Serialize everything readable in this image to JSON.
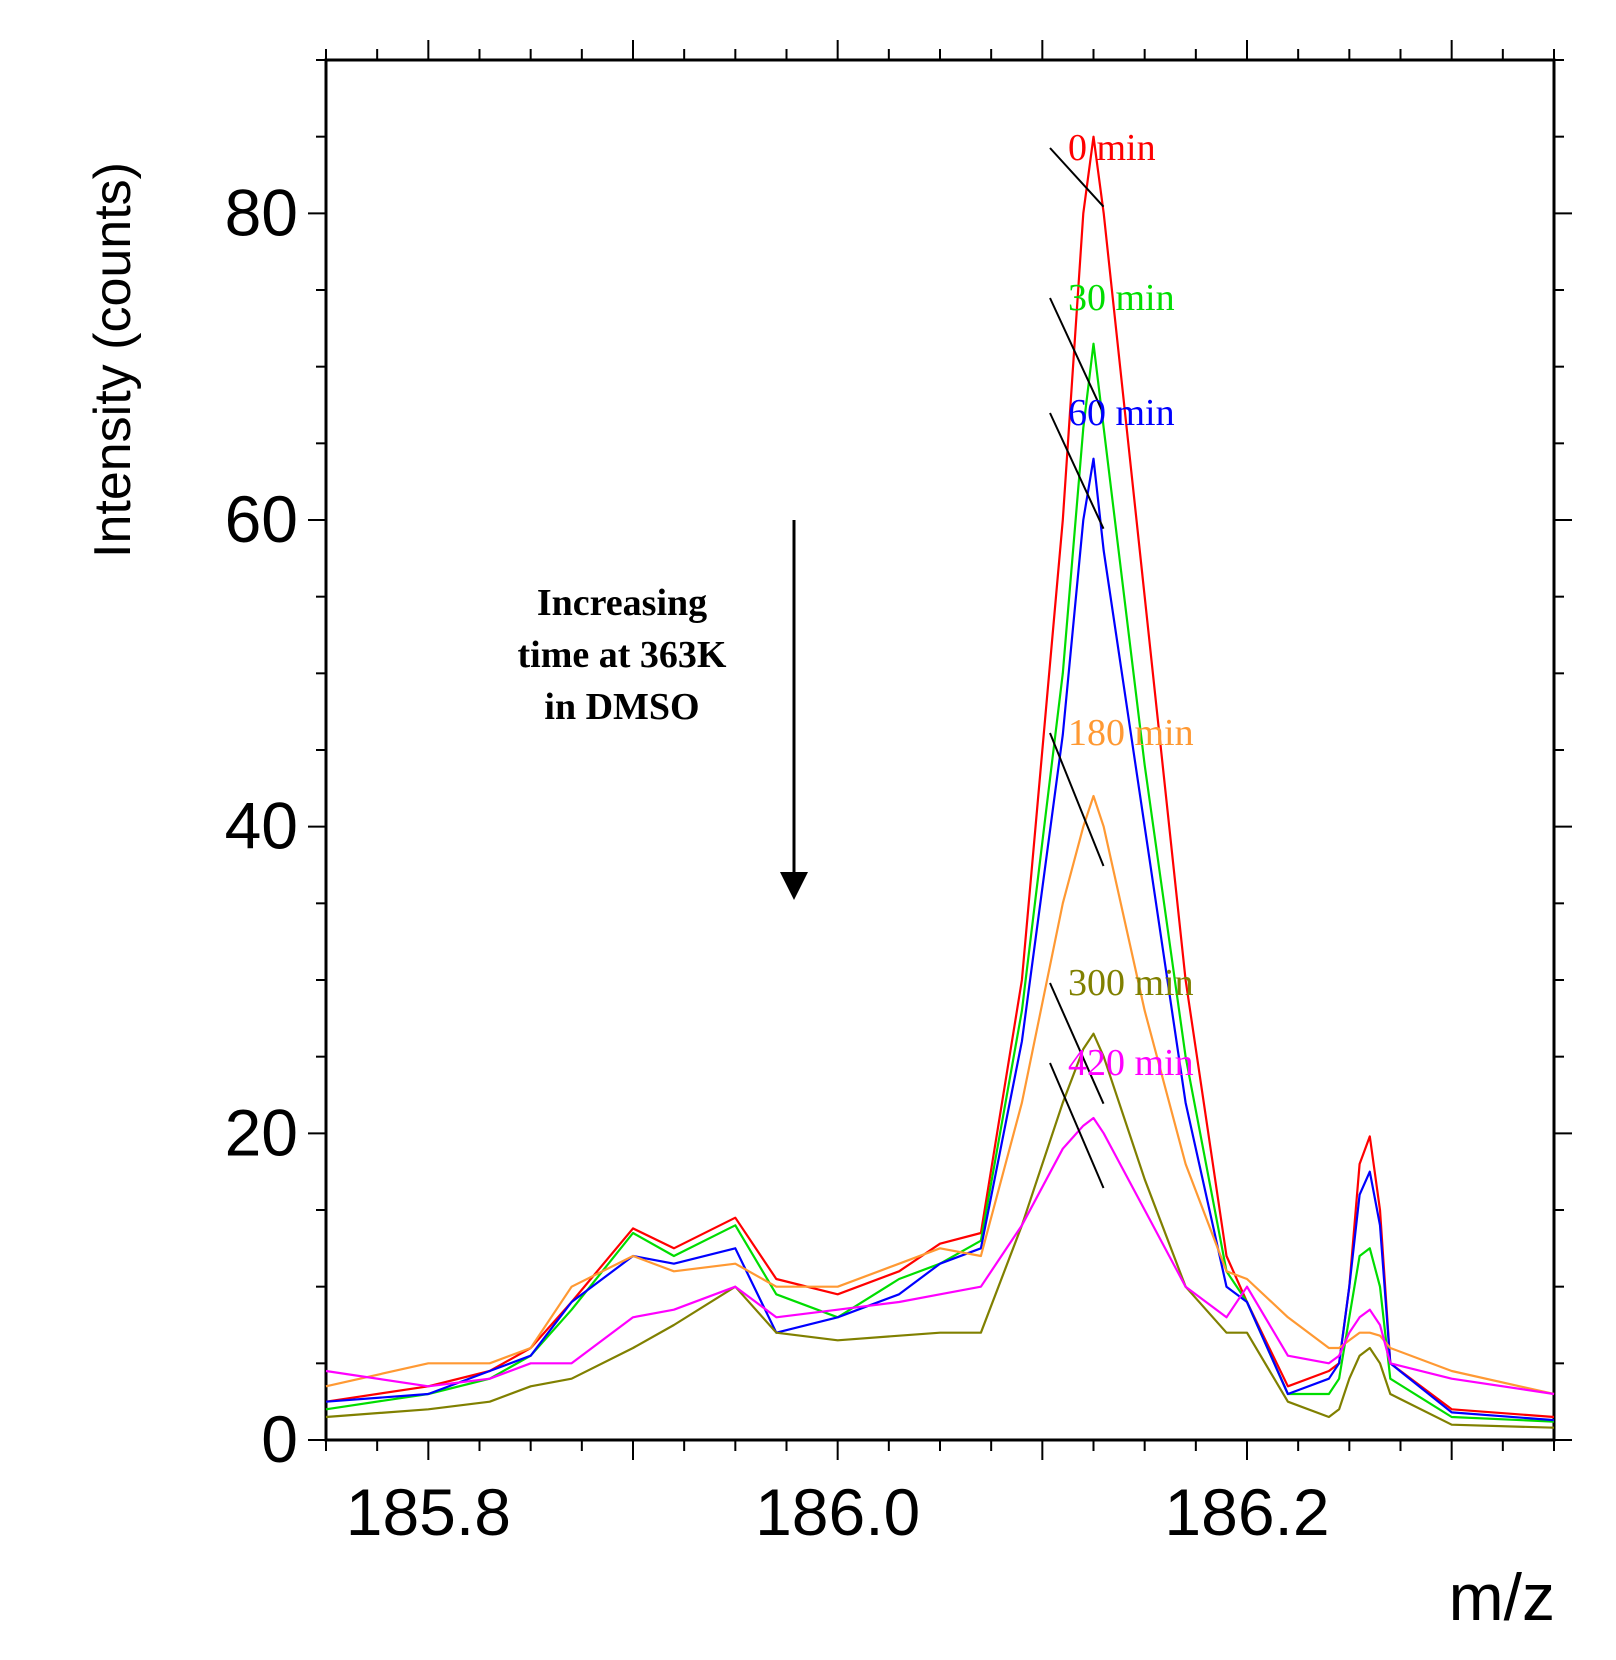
{
  "chart_data": {
    "type": "line",
    "title": "",
    "xlabel": "m/z",
    "ylabel": "Intensity (counts)",
    "xlim": [
      185.75,
      186.35
    ],
    "ylim": [
      0,
      90
    ],
    "x_ticks": [
      185.8,
      186.0,
      186.2
    ],
    "x_tick_labels": [
      "185.8",
      "186.0",
      "186.2"
    ],
    "y_ticks": [
      0,
      20,
      40,
      60,
      80
    ],
    "y_tick_labels": [
      "0",
      "20",
      "40",
      "60",
      "80"
    ],
    "grid": false,
    "legend": "inline labels at top-right of main peak",
    "annotation": {
      "lines": [
        "Increasing",
        "time at 363K",
        "in DMSO"
      ],
      "arrow": "down"
    },
    "series": [
      {
        "name": "0 min",
        "color": "#ff0000",
        "points": [
          [
            185.75,
            2.5
          ],
          [
            185.8,
            3.5
          ],
          [
            185.83,
            4.5
          ],
          [
            185.85,
            6
          ],
          [
            185.87,
            9
          ],
          [
            185.9,
            13.8
          ],
          [
            185.92,
            12.5
          ],
          [
            185.95,
            14.5
          ],
          [
            185.97,
            10.5
          ],
          [
            186.0,
            9.5
          ],
          [
            186.03,
            11
          ],
          [
            186.05,
            12.8
          ],
          [
            186.07,
            13.5
          ],
          [
            186.09,
            30
          ],
          [
            186.11,
            60
          ],
          [
            186.12,
            80
          ],
          [
            186.125,
            85
          ],
          [
            186.13,
            80
          ],
          [
            186.15,
            55
          ],
          [
            186.17,
            30
          ],
          [
            186.19,
            12
          ],
          [
            186.2,
            9
          ],
          [
            186.22,
            3.5
          ],
          [
            186.24,
            4.5
          ],
          [
            186.245,
            5
          ],
          [
            186.25,
            10
          ],
          [
            186.255,
            18
          ],
          [
            186.26,
            19.8
          ],
          [
            186.265,
            15
          ],
          [
            186.27,
            5
          ],
          [
            186.3,
            2
          ],
          [
            186.35,
            1.5
          ]
        ]
      },
      {
        "name": "30 min",
        "color": "#00dd00",
        "points": [
          [
            185.75,
            2
          ],
          [
            185.8,
            3
          ],
          [
            185.83,
            4
          ],
          [
            185.85,
            5.5
          ],
          [
            185.87,
            8.5
          ],
          [
            185.9,
            13.5
          ],
          [
            185.92,
            12
          ],
          [
            185.95,
            14
          ],
          [
            185.97,
            9.5
          ],
          [
            186.0,
            8
          ],
          [
            186.03,
            10.5
          ],
          [
            186.05,
            11.5
          ],
          [
            186.07,
            13
          ],
          [
            186.09,
            28
          ],
          [
            186.11,
            50
          ],
          [
            186.12,
            66
          ],
          [
            186.125,
            71.5
          ],
          [
            186.13,
            66
          ],
          [
            186.15,
            44
          ],
          [
            186.17,
            25
          ],
          [
            186.19,
            11
          ],
          [
            186.2,
            9
          ],
          [
            186.22,
            3
          ],
          [
            186.24,
            3
          ],
          [
            186.245,
            4
          ],
          [
            186.25,
            8
          ],
          [
            186.255,
            12
          ],
          [
            186.26,
            12.5
          ],
          [
            186.265,
            10
          ],
          [
            186.27,
            4
          ],
          [
            186.3,
            1.5
          ],
          [
            186.35,
            1.2
          ]
        ]
      },
      {
        "name": "60 min",
        "color": "#0000ff",
        "points": [
          [
            185.75,
            2.5
          ],
          [
            185.8,
            3
          ],
          [
            185.83,
            4.5
          ],
          [
            185.85,
            5.5
          ],
          [
            185.87,
            9
          ],
          [
            185.9,
            12
          ],
          [
            185.92,
            11.5
          ],
          [
            185.95,
            12.5
          ],
          [
            185.97,
            7
          ],
          [
            186.0,
            8
          ],
          [
            186.03,
            9.5
          ],
          [
            186.05,
            11.5
          ],
          [
            186.07,
            12.5
          ],
          [
            186.09,
            26
          ],
          [
            186.11,
            46
          ],
          [
            186.12,
            60
          ],
          [
            186.125,
            64
          ],
          [
            186.13,
            58
          ],
          [
            186.15,
            40
          ],
          [
            186.17,
            22
          ],
          [
            186.19,
            10
          ],
          [
            186.2,
            9
          ],
          [
            186.22,
            3
          ],
          [
            186.24,
            4
          ],
          [
            186.245,
            5
          ],
          [
            186.25,
            10
          ],
          [
            186.255,
            16
          ],
          [
            186.26,
            17.5
          ],
          [
            186.265,
            14
          ],
          [
            186.27,
            5
          ],
          [
            186.3,
            1.8
          ],
          [
            186.35,
            1.3
          ]
        ]
      },
      {
        "name": "180 min",
        "color": "#ff9933",
        "points": [
          [
            185.75,
            3.5
          ],
          [
            185.8,
            5
          ],
          [
            185.83,
            5
          ],
          [
            185.85,
            6
          ],
          [
            185.87,
            10
          ],
          [
            185.9,
            12
          ],
          [
            185.92,
            11
          ],
          [
            185.95,
            11.5
          ],
          [
            185.97,
            10
          ],
          [
            186.0,
            10
          ],
          [
            186.03,
            11.5
          ],
          [
            186.05,
            12.5
          ],
          [
            186.07,
            12
          ],
          [
            186.09,
            22
          ],
          [
            186.11,
            35
          ],
          [
            186.12,
            40
          ],
          [
            186.125,
            42
          ],
          [
            186.13,
            40
          ],
          [
            186.15,
            28
          ],
          [
            186.17,
            18
          ],
          [
            186.19,
            11
          ],
          [
            186.2,
            10.5
          ],
          [
            186.22,
            8
          ],
          [
            186.24,
            6
          ],
          [
            186.245,
            6
          ],
          [
            186.25,
            6.5
          ],
          [
            186.255,
            7
          ],
          [
            186.26,
            7
          ],
          [
            186.265,
            6.8
          ],
          [
            186.27,
            6
          ],
          [
            186.3,
            4.5
          ],
          [
            186.35,
            3
          ]
        ]
      },
      {
        "name": "300 min",
        "color": "#808000",
        "points": [
          [
            185.75,
            1.5
          ],
          [
            185.8,
            2
          ],
          [
            185.83,
            2.5
          ],
          [
            185.85,
            3.5
          ],
          [
            185.87,
            4
          ],
          [
            185.9,
            6
          ],
          [
            185.92,
            7.5
          ],
          [
            185.95,
            10
          ],
          [
            185.97,
            7
          ],
          [
            186.0,
            6.5
          ],
          [
            186.03,
            6.8
          ],
          [
            186.05,
            7
          ],
          [
            186.07,
            7
          ],
          [
            186.09,
            14
          ],
          [
            186.11,
            22
          ],
          [
            186.12,
            25.5
          ],
          [
            186.125,
            26.5
          ],
          [
            186.13,
            25
          ],
          [
            186.15,
            17
          ],
          [
            186.17,
            10
          ],
          [
            186.19,
            7
          ],
          [
            186.2,
            7
          ],
          [
            186.22,
            2.5
          ],
          [
            186.24,
            1.5
          ],
          [
            186.245,
            2
          ],
          [
            186.25,
            4
          ],
          [
            186.255,
            5.5
          ],
          [
            186.26,
            6
          ],
          [
            186.265,
            5
          ],
          [
            186.27,
            3
          ],
          [
            186.3,
            1
          ],
          [
            186.35,
            0.8
          ]
        ]
      },
      {
        "name": "420 min",
        "color": "#ff00ff",
        "points": [
          [
            185.75,
            4.5
          ],
          [
            185.8,
            3.5
          ],
          [
            185.83,
            4
          ],
          [
            185.85,
            5
          ],
          [
            185.87,
            5
          ],
          [
            185.9,
            8
          ],
          [
            185.92,
            8.5
          ],
          [
            185.95,
            10
          ],
          [
            185.97,
            8
          ],
          [
            186.0,
            8.5
          ],
          [
            186.03,
            9
          ],
          [
            186.05,
            9.5
          ],
          [
            186.07,
            10
          ],
          [
            186.09,
            14
          ],
          [
            186.11,
            19
          ],
          [
            186.12,
            20.5
          ],
          [
            186.125,
            21
          ],
          [
            186.13,
            20
          ],
          [
            186.15,
            15
          ],
          [
            186.17,
            10
          ],
          [
            186.19,
            8
          ],
          [
            186.2,
            10
          ],
          [
            186.22,
            5.5
          ],
          [
            186.24,
            5
          ],
          [
            186.245,
            5.5
          ],
          [
            186.25,
            7
          ],
          [
            186.255,
            8
          ],
          [
            186.26,
            8.5
          ],
          [
            186.265,
            7.5
          ],
          [
            186.27,
            5
          ],
          [
            186.3,
            4
          ],
          [
            186.35,
            3
          ]
        ]
      }
    ]
  }
}
